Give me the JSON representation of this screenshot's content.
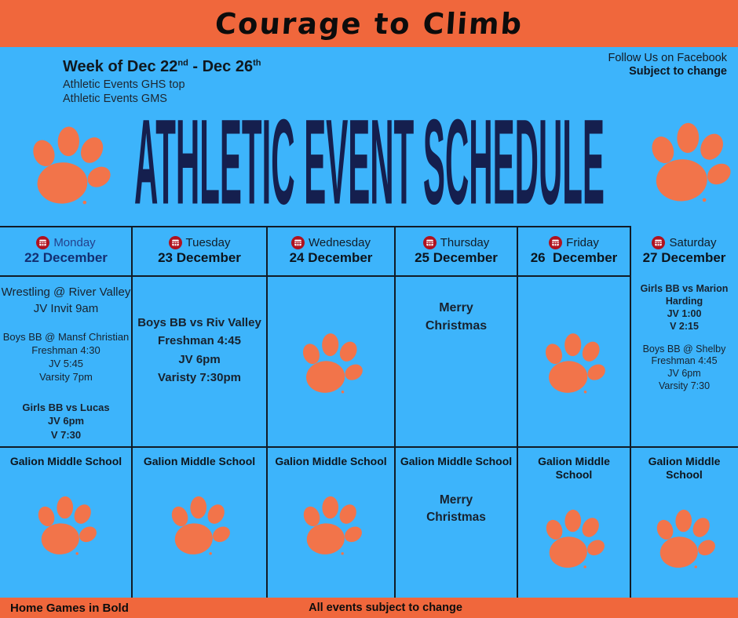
{
  "banner": {
    "title": "Courage to Climb"
  },
  "header": {
    "week_p1": "Week of Dec 22",
    "week_sup1": "nd",
    "week_p2": " - Dec 26",
    "week_sup2": "th",
    "line1": "Athletic Events GHS top",
    "line2": "Athletic Events GMS",
    "right1": "Follow Us on Facebook",
    "right2": "Subject to change"
  },
  "main_title": "ATHLETIC EVENT SCHEDULE",
  "schedule": {
    "columns": [
      {
        "day": "Monday",
        "date": "22 December",
        "day_color": "#24418c",
        "date_color": "#132f72",
        "paw": false,
        "events": [
          {
            "size": "lg",
            "bold": false,
            "lines": [
              "Wrestling @ River Valley",
              "JV Invit 9am"
            ]
          },
          {
            "size": "md",
            "bold": false,
            "lines": [
              "Boys BB @ Mansf Christian",
              "Freshman 4:30",
              "JV 5:45",
              "Varsity 7pm"
            ]
          },
          {
            "size": "md",
            "bold": true,
            "lines": [
              "Girls BB vs Lucas",
              "JV 6pm",
              "V 7:30"
            ]
          }
        ],
        "gms": {
          "label": "Galion Middle School",
          "paw": true,
          "lines": []
        }
      },
      {
        "day": "Tuesday",
        "date": "23 December",
        "day_color": "#101c28",
        "date_color": "#0c141d",
        "paw": false,
        "events": [
          {
            "size": "lg",
            "bold": true,
            "lines": [
              "Boys BB vs Riv Valley",
              "Freshman 4:45",
              "JV 6pm",
              "Varisty 7:30pm"
            ]
          }
        ],
        "gms": {
          "label": "Galion Middle School",
          "paw": true,
          "lines": []
        }
      },
      {
        "day": "Wednesday",
        "date": "24 December",
        "day_color": "#101c28",
        "date_color": "#0c141d",
        "paw": true,
        "events": [],
        "gms": {
          "label": "Galion Middle School",
          "paw": true,
          "lines": []
        }
      },
      {
        "day": "Thursday",
        "date": "25 December",
        "day_color": "#101c28",
        "date_color": "#0c141d",
        "paw": false,
        "events": [
          {
            "size": "lg",
            "bold": true,
            "lines": [
              "Merry",
              "Christmas"
            ]
          }
        ],
        "gms": {
          "label": "Galion Middle School",
          "paw": false,
          "lines": [
            "Merry",
            "Christmas"
          ]
        }
      },
      {
        "day": "Friday",
        "date": "26  December",
        "day_color": "#101c28",
        "date_color": "#0c141d",
        "paw": true,
        "events": [],
        "gms": {
          "label": "Galion Middle School",
          "paw": true,
          "lines": []
        }
      },
      {
        "day": "Saturday",
        "date": "27 December",
        "day_color": "#101c28",
        "date_color": "#0c141d",
        "paw": false,
        "events": [
          {
            "size": "sm",
            "bold": true,
            "lines": [
              "Girls BB vs Marion",
              "Harding",
              "JV 1:00",
              "V 2:15"
            ]
          },
          {
            "size": "sm",
            "bold": false,
            "lines": [
              "Boys BB @ Shelby",
              "Freshman 4:45",
              "JV 6pm",
              "Varsity 7:30"
            ]
          }
        ],
        "gms": {
          "label": "Galion Middle School",
          "paw": true,
          "lines": []
        }
      }
    ]
  },
  "footer": {
    "left": "Home Games in Bold",
    "center": "All events subject to change"
  },
  "colors": {
    "background": "#3db4fb",
    "orange": "#f0673c",
    "paw": "#f2744a",
    "navy": "#151f4e",
    "grid_line": "#111b26",
    "calendar_red": "#b0121f",
    "text": "#18222e"
  }
}
